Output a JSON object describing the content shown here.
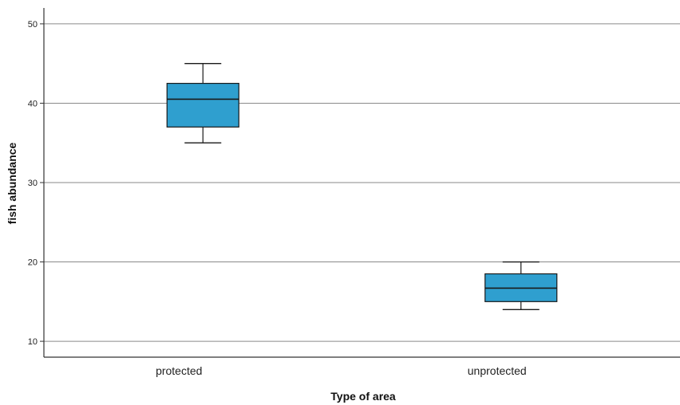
{
  "chart_data": {
    "type": "box",
    "categories": [
      "protected",
      "unprotected"
    ],
    "boxes": [
      {
        "category": "protected",
        "min": 35,
        "q1": 37,
        "median": 40.5,
        "q3": 42.5,
        "max": 45
      },
      {
        "category": "unprotected",
        "min": 14,
        "q1": 15,
        "median": 16.7,
        "q3": 18.5,
        "max": 20
      }
    ],
    "xlabel": "Type of area",
    "ylabel": "fish abundance",
    "ylim": [
      8,
      52
    ],
    "yticks": [
      10,
      20,
      30,
      40,
      50
    ],
    "grid": "horizontal",
    "colors": {
      "box_fill": "#2f9fcf",
      "box_stroke": "#1a1a1a",
      "grid": "#8a8a8a",
      "axis": "#333333"
    }
  }
}
